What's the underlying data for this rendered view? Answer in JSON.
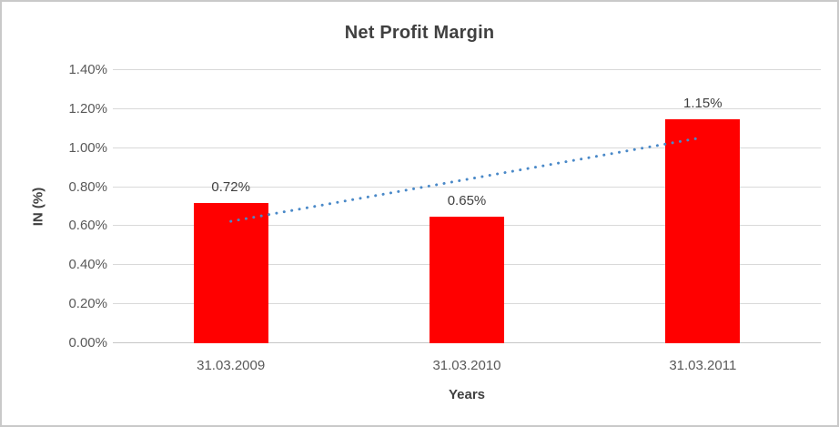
{
  "chart_data": {
    "type": "bar",
    "title": "Net Profit Margin",
    "categories": [
      "31.03.2009",
      "31.03.2010",
      "31.03.2011"
    ],
    "series": [
      {
        "name": "Net Profit Margin",
        "values": [
          0.72,
          0.65,
          1.15
        ],
        "color": "#ff0000"
      }
    ],
    "data_labels": [
      "0.72%",
      "0.65%",
      "1.15%"
    ],
    "xlabel": "Years",
    "ylabel": "IN (%)",
    "ylim": [
      0,
      1.4
    ],
    "ytick_step": 0.2,
    "ytick_labels": [
      "0.00%",
      "0.20%",
      "0.40%",
      "0.60%",
      "0.80%",
      "1.00%",
      "1.20%",
      "1.40%"
    ],
    "grid": true,
    "legend": "none",
    "trendline": {
      "type": "linear",
      "style": "dotted",
      "color": "#4a89c8"
    }
  },
  "colors": {
    "bar": "#ff0000",
    "trendline": "#4a89c8",
    "gridline": "#d9d9d9",
    "axis_line": "#c6c6c6",
    "frame_border": "#c9c9c9",
    "background": "#ffffff",
    "title_text": "#404040",
    "tick_text": "#595959"
  }
}
